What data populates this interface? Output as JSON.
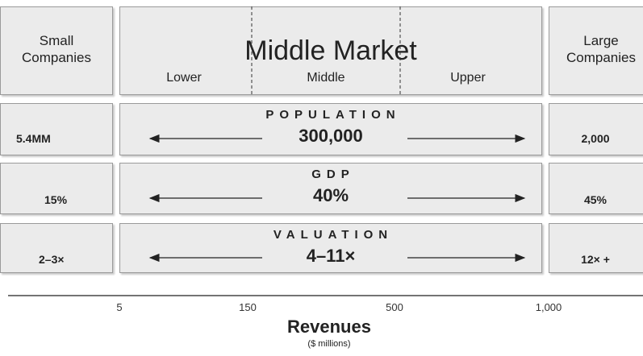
{
  "header": {
    "left": "Small Companies",
    "middle": "Middle Market",
    "segments": [
      "Lower",
      "Middle",
      "Upper"
    ],
    "right": "Large Companies"
  },
  "rows": [
    {
      "label": "POPULATION",
      "left": "5.4MM",
      "middle": "300,000",
      "right": "2,000"
    },
    {
      "label": "GDP",
      "left": "15%",
      "middle": "40%",
      "right": "45%"
    },
    {
      "label": "VALUATION",
      "left": "2–3×",
      "middle": "4–11×",
      "right": "12× +"
    }
  ],
  "axis": {
    "ticks": [
      "5",
      "150",
      "500",
      "1,000"
    ],
    "title": "Revenues",
    "subtitle": "($ millions)"
  }
}
